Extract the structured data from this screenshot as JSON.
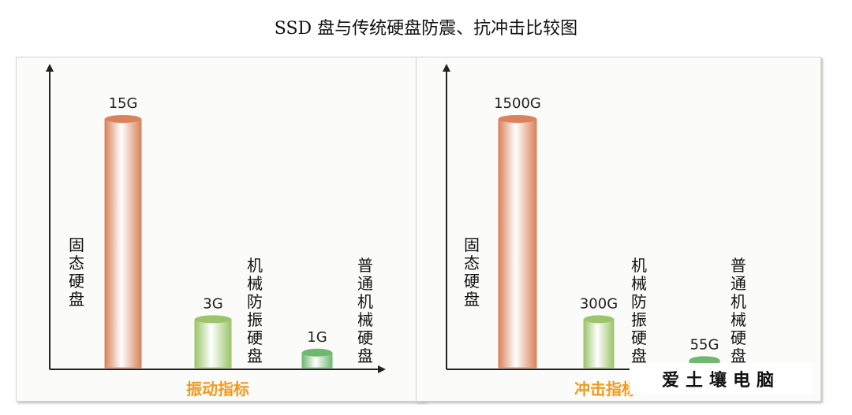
{
  "title": "SSD 盘与传统硬盘防震、抗冲击比较图",
  "watermark": "爱土壤电脑",
  "chart_data": [
    {
      "type": "bar",
      "xlabel": "振动指标",
      "categories": [
        "固态硬盘",
        "机械防振硬盘",
        "普通机械硬盘"
      ],
      "values": [
        15,
        3,
        1
      ],
      "value_labels": [
        "15G",
        "3G",
        "1G"
      ],
      "colors": [
        "#d9825b",
        "#9cc46a",
        "#6fb86f"
      ]
    },
    {
      "type": "bar",
      "xlabel": "冲击指标",
      "categories": [
        "固态硬盘",
        "机械防振硬盘",
        "普通机械硬盘"
      ],
      "values": [
        1500,
        300,
        55
      ],
      "value_labels": [
        "1500G",
        "300G",
        "55G"
      ],
      "colors": [
        "#d9825b",
        "#9cc46a",
        "#6fb86f"
      ]
    }
  ]
}
